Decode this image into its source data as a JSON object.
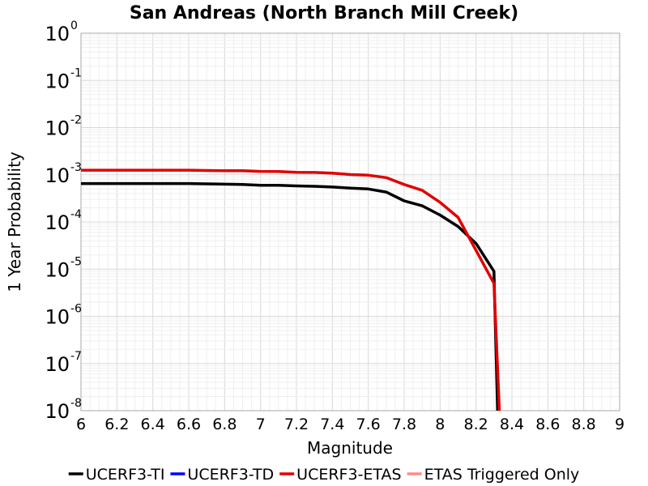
{
  "chart_data": {
    "type": "line",
    "title": "San Andreas (North Branch Mill Creek)",
    "xlabel": "Magnitude",
    "ylabel": "1 Year Probability",
    "xlim": [
      6,
      9
    ],
    "ylim": [
      1e-08,
      1
    ],
    "yscale": "log",
    "grid": true,
    "legend_position": "bottom",
    "x_ticks": [
      "6",
      "6.2",
      "6.4",
      "6.6",
      "6.8",
      "7",
      "7.2",
      "7.4",
      "7.6",
      "7.8",
      "8",
      "8.2",
      "8.4",
      "8.6",
      "8.8",
      "9"
    ],
    "y_ticks": [
      {
        "base": "10",
        "exp": "0"
      },
      {
        "base": "10",
        "exp": "-1"
      },
      {
        "base": "10",
        "exp": "-2"
      },
      {
        "base": "10",
        "exp": "-3"
      },
      {
        "base": "10",
        "exp": "-4"
      },
      {
        "base": "10",
        "exp": "-5"
      },
      {
        "base": "10",
        "exp": "-6"
      },
      {
        "base": "10",
        "exp": "-7"
      },
      {
        "base": "10",
        "exp": "-8"
      }
    ],
    "series": [
      {
        "name": "UCERF3-TI",
        "color": "#000000",
        "x": [
          6.0,
          6.1,
          6.2,
          6.3,
          6.4,
          6.5,
          6.6,
          6.7,
          6.8,
          6.9,
          7.0,
          7.1,
          7.2,
          7.3,
          7.4,
          7.5,
          7.6,
          7.7,
          7.8,
          7.9,
          8.0,
          8.1,
          8.2,
          8.3,
          8.32
        ],
        "y": [
          0.00065,
          0.00065,
          0.00065,
          0.00065,
          0.00065,
          0.00065,
          0.00065,
          0.00064,
          0.00063,
          0.00062,
          0.0006,
          0.0006,
          0.00058,
          0.00057,
          0.00055,
          0.00052,
          0.0005,
          0.00043,
          0.00028,
          0.00022,
          0.00014,
          8e-05,
          3.5e-05,
          9e-06,
          1e-08
        ]
      },
      {
        "name": "UCERF3-TD",
        "color": "#0000ff",
        "x": [],
        "y": []
      },
      {
        "name": "UCERF3-ETAS",
        "color": "#e00000",
        "x": [
          6.0,
          6.1,
          6.2,
          6.3,
          6.4,
          6.5,
          6.6,
          6.7,
          6.8,
          6.9,
          7.0,
          7.1,
          7.2,
          7.3,
          7.4,
          7.5,
          7.6,
          7.7,
          7.8,
          7.9,
          8.0,
          8.1,
          8.2,
          8.3,
          8.33
        ],
        "y": [
          0.00125,
          0.00125,
          0.00125,
          0.00125,
          0.00125,
          0.00125,
          0.00125,
          0.00123,
          0.00122,
          0.00122,
          0.00118,
          0.00117,
          0.00113,
          0.00112,
          0.00108,
          0.00101,
          0.00098,
          0.00087,
          0.00062,
          0.00047,
          0.00026,
          0.000125,
          2.5e-05,
          5e-06,
          1e-08
        ]
      },
      {
        "name": "ETAS Triggered Only",
        "color": "#ff8a8a",
        "x": [],
        "y": []
      }
    ]
  }
}
